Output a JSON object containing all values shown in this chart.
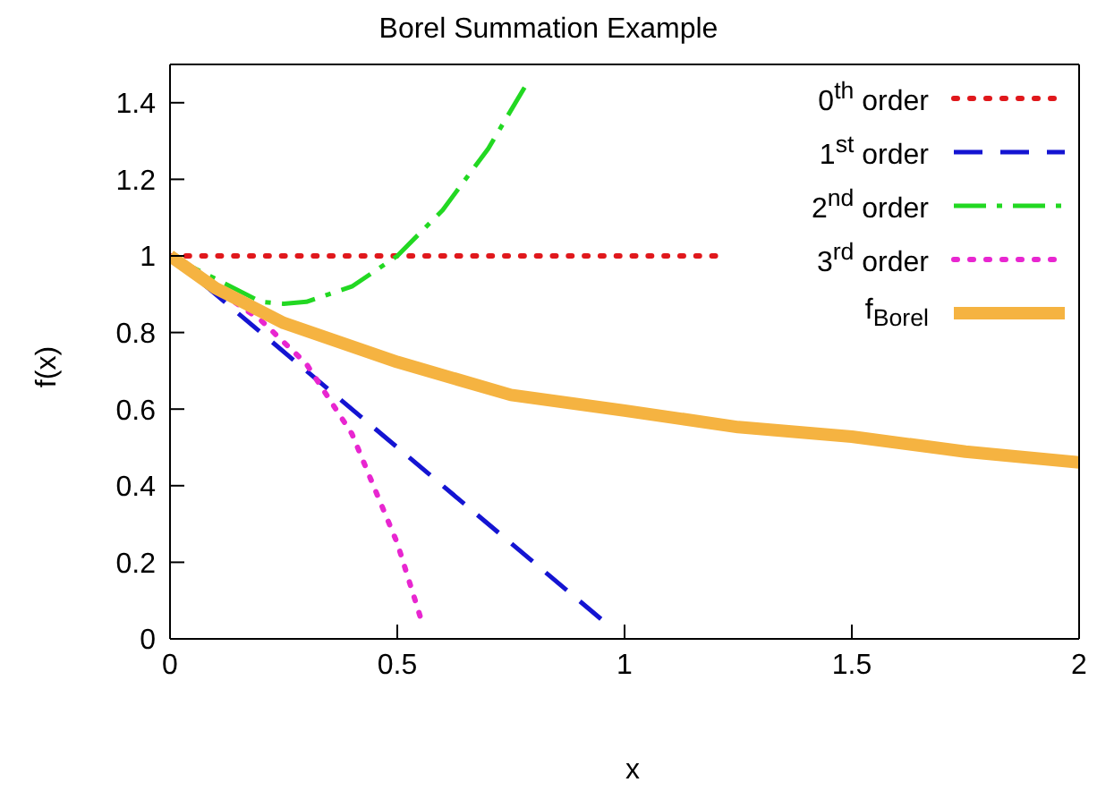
{
  "chart_data": {
    "type": "line",
    "title": "Borel Summation Example",
    "xlabel": "x",
    "ylabel": "f(x)",
    "xlim": [
      0,
      2
    ],
    "xticks": [
      0,
      0.5,
      1,
      1.5,
      2
    ],
    "ylim": [
      0,
      1.5
    ],
    "yticks": [
      0,
      0.2,
      0.4,
      0.6,
      0.8,
      1,
      1.2,
      1.4
    ],
    "grid": false,
    "legend": "top right",
    "marker": "none",
    "series": [
      {
        "name": "0$^{th}$ order",
        "color": "#e0181c",
        "line_style": "dotted",
        "x": [
          0,
          1.2
        ],
        "values": [
          1,
          1
        ]
      },
      {
        "name": "1$^{st}$ order",
        "color": "#1414d2",
        "line_style": "dashed",
        "x": [
          0,
          0.95
        ],
        "values": [
          1,
          0.05
        ]
      },
      {
        "name": "2$^{nd}$ order",
        "color": "#22d822",
        "line_style": "dashdot",
        "x": [
          0,
          0.2,
          0.25,
          0.3,
          0.4,
          0.5,
          0.6,
          0.7,
          0.78
        ],
        "values": [
          1,
          0.88,
          0.875,
          0.88,
          0.92,
          1.0,
          1.12,
          1.28,
          1.44
        ]
      },
      {
        "name": "3$^{rd}$ order",
        "color": "#e826d0",
        "line_style": "dotted",
        "x": [
          0,
          0.1,
          0.2,
          0.3,
          0.4,
          0.5,
          0.55
        ],
        "values": [
          1,
          0.914,
          0.832,
          0.718,
          0.536,
          0.25,
          0.06
        ]
      },
      {
        "name": "f$_{Borel}$",
        "color": "#f5b341",
        "line_style": "solid",
        "x": [
          0,
          0.1,
          0.25,
          0.5,
          0.75,
          1,
          1.25,
          1.5,
          1.75,
          2
        ],
        "values": [
          1,
          0.916,
          0.825,
          0.723,
          0.637,
          0.596,
          0.553,
          0.528,
          0.489,
          0.461
        ]
      }
    ]
  }
}
